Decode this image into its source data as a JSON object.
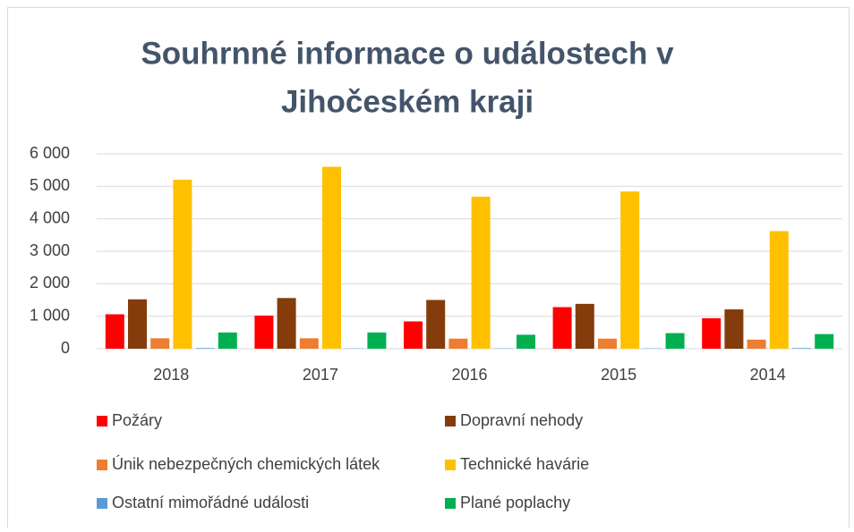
{
  "chart_data": {
    "type": "bar",
    "title": [
      "Souhrnné informace o událostech v",
      "Jihočeském kraji"
    ],
    "categories": [
      "2018",
      "2017",
      "2016",
      "2015",
      "2014"
    ],
    "series": [
      {
        "name": "Požáry",
        "color": "#ff0000",
        "values": [
          1060,
          1020,
          840,
          1280,
          940
        ]
      },
      {
        "name": "Dopravní nehody",
        "color": "#843c0c",
        "values": [
          1520,
          1560,
          1500,
          1380,
          1210
        ]
      },
      {
        "name": "Únik nebezpečných chemických látek",
        "color": "#ed7d31",
        "values": [
          320,
          320,
          310,
          310,
          280
        ]
      },
      {
        "name": "Technické havárie",
        "color": "#ffc000",
        "values": [
          5200,
          5600,
          4680,
          4840,
          3620
        ]
      },
      {
        "name": "Ostatní mimořádné události",
        "color": "#5b9bd5",
        "values": [
          20,
          10,
          10,
          10,
          20
        ]
      },
      {
        "name": "Plané poplachy",
        "color": "#00b050",
        "values": [
          500,
          500,
          430,
          480,
          450
        ]
      }
    ],
    "ylim": [
      0,
      6000
    ],
    "yticks": [
      0,
      {
        "value": 1000,
        "label": "1 000"
      },
      {
        "value": 2000,
        "label": "2 000"
      },
      {
        "value": 3000,
        "label": "3 000"
      },
      {
        "value": 4000,
        "label": "4 000"
      },
      {
        "value": 5000,
        "label": "5 000"
      },
      {
        "value": 6000,
        "label": "6 000"
      }
    ],
    "grid": true,
    "legend": "bottom"
  }
}
